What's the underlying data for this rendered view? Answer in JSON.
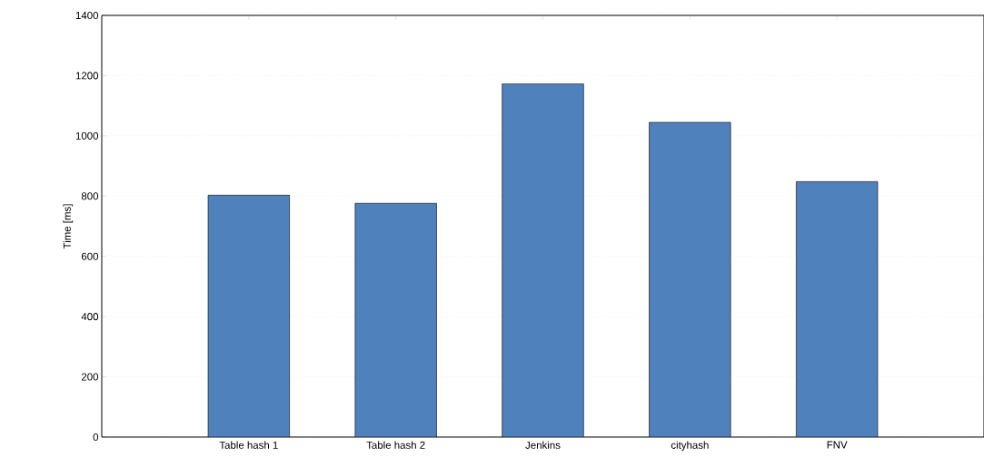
{
  "chart_data": {
    "type": "bar",
    "ylabel": "Time [ms]",
    "categories": [
      "Table hash 1",
      "Table hash 2",
      "Jenkins",
      "cityhash",
      "FNV"
    ],
    "values": [
      803,
      776,
      1173,
      1045,
      848
    ],
    "color": "#4f81bd",
    "ylim": [
      0,
      1400
    ],
    "yticks": [
      0,
      200,
      400,
      600,
      800,
      1000,
      1200,
      1400
    ],
    "grid": "y"
  }
}
